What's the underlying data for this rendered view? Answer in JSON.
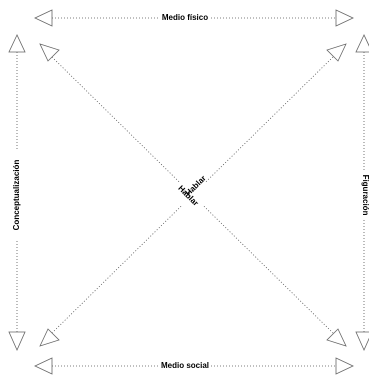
{
  "labels": {
    "top": "Medio físico",
    "bottom": "Medio social",
    "left": "Conceptualización",
    "right": "Figuración"
  },
  "center": [
    "Hablar",
    "Hablar"
  ]
}
